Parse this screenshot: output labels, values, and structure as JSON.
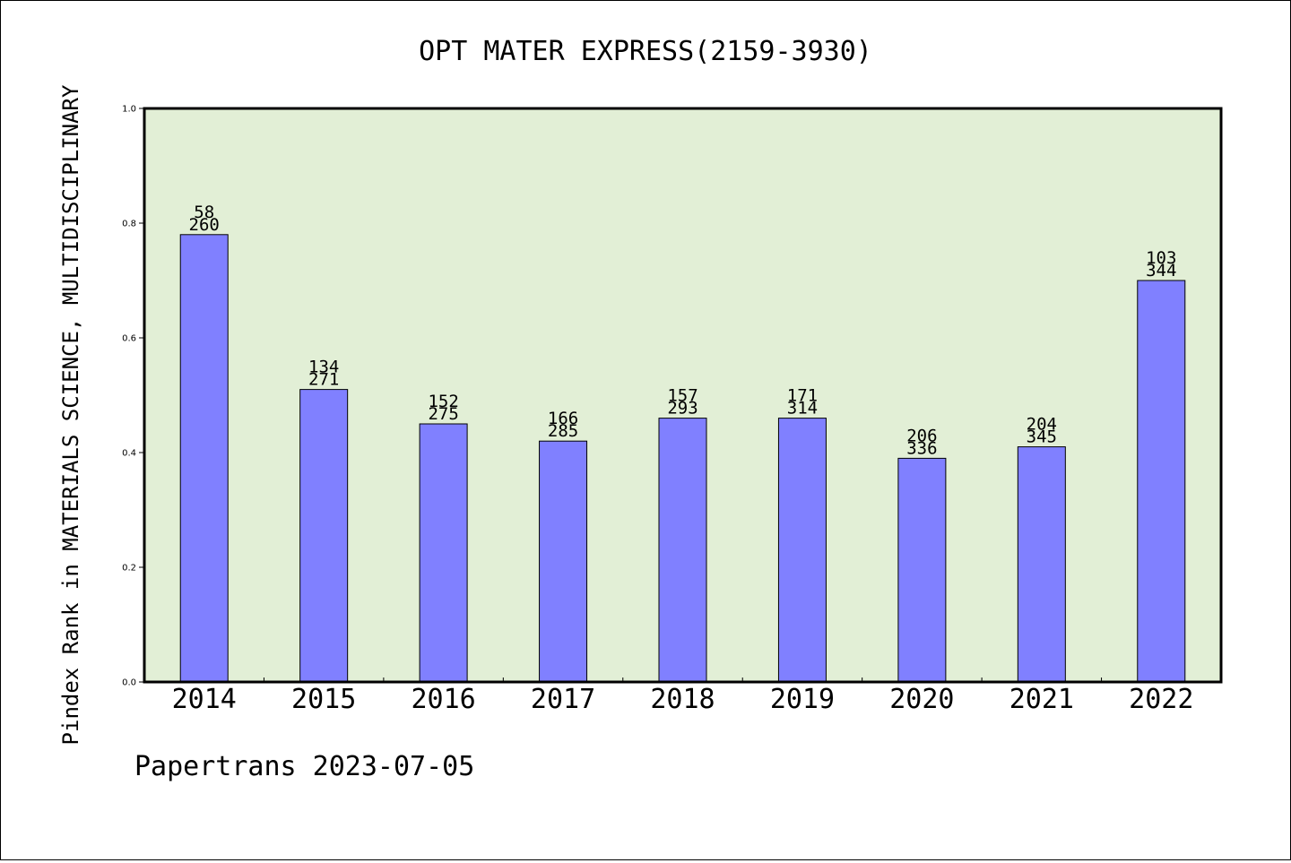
{
  "chart_data": {
    "type": "bar",
    "title": "OPT MATER EXPRESS(2159-3930)",
    "xlabel": "",
    "ylabel": "Pindex Rank in MATERIALS SCIENCE, MULTIDISCIPLINARY",
    "ylim": [
      0,
      1.0
    ],
    "yticks": [
      "0.0",
      "0.2",
      "0.4",
      "0.6",
      "0.8",
      "1.0"
    ],
    "categories": [
      "2014",
      "2015",
      "2016",
      "2017",
      "2018",
      "2019",
      "2020",
      "2021",
      "2022"
    ],
    "values": [
      0.78,
      0.51,
      0.45,
      0.42,
      0.46,
      0.46,
      0.39,
      0.41,
      0.7
    ],
    "rank": [
      "58",
      "134",
      "152",
      "166",
      "157",
      "171",
      "206",
      "204",
      "103"
    ],
    "total": [
      "260",
      "271",
      "275",
      "285",
      "293",
      "314",
      "336",
      "345",
      "344"
    ],
    "grid": false,
    "colors": {
      "bar": "#8080ff",
      "plot_bg": "#e2efd6"
    }
  },
  "footer": "Papertrans 2023-07-05"
}
